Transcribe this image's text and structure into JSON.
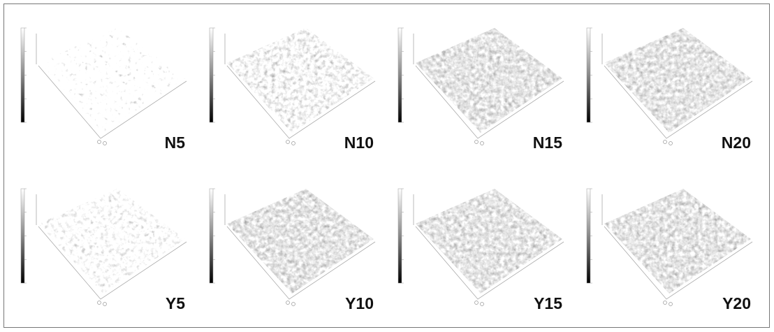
{
  "panels": [
    {
      "label": "N5"
    },
    {
      "label": "N10"
    },
    {
      "label": "N15"
    },
    {
      "label": "N20"
    },
    {
      "label": "Y5"
    },
    {
      "label": "Y10"
    },
    {
      "label": "Y15"
    },
    {
      "label": "Y20"
    }
  ]
}
